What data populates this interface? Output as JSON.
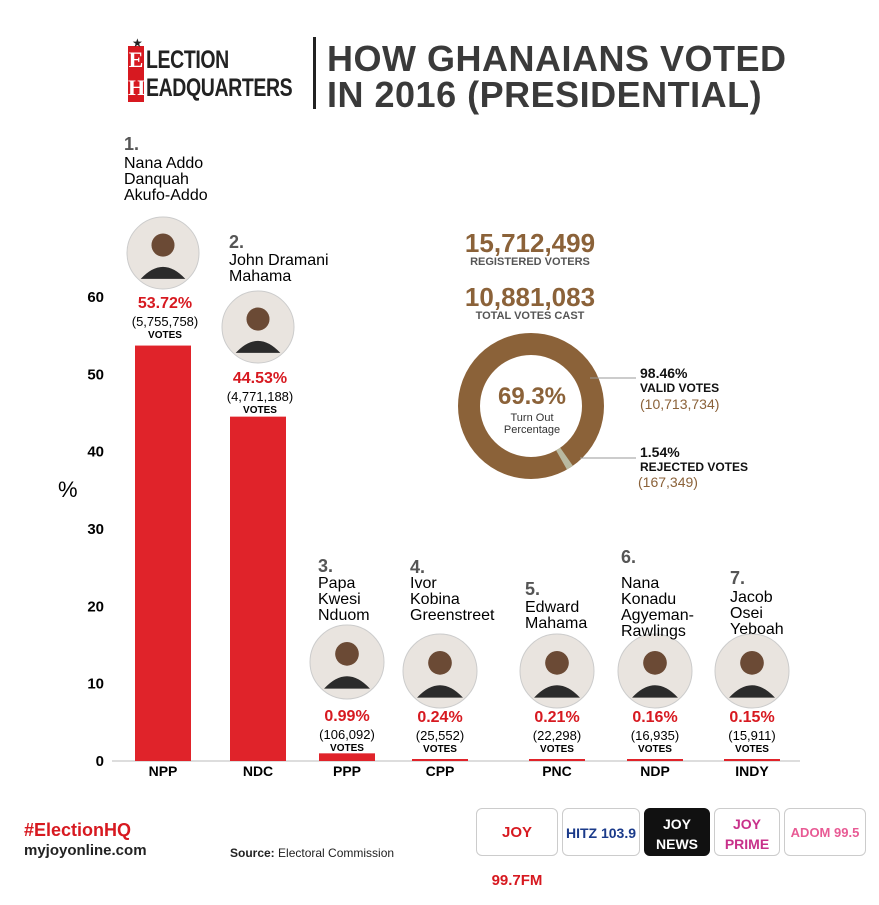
{
  "header": {
    "logo_letters": [
      "E",
      "H"
    ],
    "logo_words": [
      "LECTION",
      "EADQUARTERS"
    ],
    "title_line1": "HOW GHANAIANS VOTED",
    "title_line2": "IN 2016 (PRESIDENTIAL)"
  },
  "stats": {
    "registered_value": "15,712,499",
    "registered_label": "REGISTERED VOTERS",
    "cast_value": "10,881,083",
    "cast_label": "TOTAL VOTES CAST",
    "turnout_value": "69.3%",
    "turnout_label_1": "Turn Out",
    "turnout_label_2": "Percentage",
    "valid_pct": "98.46%",
    "valid_label": "VALID VOTES",
    "valid_count": "(10,713,734)",
    "rejected_pct": "1.54%",
    "rejected_label": "REJECTED VOTES",
    "rejected_count": "(167,349)",
    "donut_fractions": {
      "valid": 0.9846,
      "rejected": 0.0154
    },
    "donut_colors": {
      "valid": "#8b6239",
      "rejected": "#b9b9a0"
    }
  },
  "chart_data": {
    "type": "bar",
    "ylabel": "%",
    "ylim": [
      0,
      60
    ],
    "yticks": [
      "0",
      "10",
      "20",
      "30",
      "40",
      "50",
      "60"
    ],
    "categories": [
      "NPP",
      "NDC",
      "PPP",
      "CPP",
      "PNC",
      "NDP",
      "INDY"
    ],
    "values": [
      53.72,
      44.53,
      0.99,
      0.24,
      0.21,
      0.16,
      0.15
    ],
    "bar_color": "#e0232a",
    "pct_labels": [
      "53.72%",
      "44.53%",
      "0.99%",
      "0.24%",
      "0.21%",
      "0.16%",
      "0.15%"
    ],
    "count_labels": [
      "(5,755,758)",
      "(4,771,188)",
      "(106,092)",
      "(25,552)",
      "(22,298)",
      "(16,935)",
      "(15,911)"
    ],
    "votes_word": "VOTES",
    "ranks": [
      "1.",
      "2.",
      "3.",
      "4.",
      "5.",
      "6.",
      "7."
    ],
    "candidates": [
      [
        "Nana Addo",
        "Danquah",
        "Akufo-Addo"
      ],
      [
        "John Dramani",
        "Mahama"
      ],
      [
        "Papa",
        "Kwesi",
        "Nduom"
      ],
      [
        "Ivor",
        "Kobina",
        "Greenstreet"
      ],
      [
        "Edward",
        "Mahama"
      ],
      [
        "Nana",
        "Konadu",
        "Agyeman-",
        "Rawlings"
      ],
      [
        "Jacob",
        "Osei",
        "Yeboah"
      ]
    ]
  },
  "footer": {
    "hashtag": "#ElectionHQ",
    "site": "myjoyonline.com",
    "source_label": "Source:",
    "source_value": "Electoral Commission",
    "brands": [
      "JOY 99.7FM",
      "HITZ 103.9",
      "JOY NEWS",
      "JOY PRIME",
      "ADOM 99.5"
    ]
  }
}
